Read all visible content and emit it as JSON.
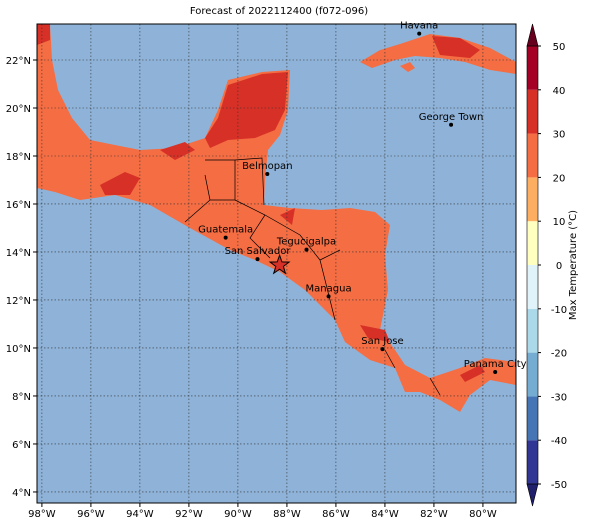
{
  "title": "Forecast of 2022112400 (f072-096)",
  "map": {
    "xlim": [
      -98.2,
      -78.65
    ],
    "ylim": [
      3.54,
      23.5
    ],
    "xticks": [
      {
        "value": -98,
        "label": "98°W"
      },
      {
        "value": -96,
        "label": "96°W"
      },
      {
        "value": -94,
        "label": "94°W"
      },
      {
        "value": -92,
        "label": "92°W"
      },
      {
        "value": -90,
        "label": "90°W"
      },
      {
        "value": -88,
        "label": "88°W"
      },
      {
        "value": -86,
        "label": "86°W"
      },
      {
        "value": -84,
        "label": "84°W"
      },
      {
        "value": -82,
        "label": "82°W"
      },
      {
        "value": -80,
        "label": "80°W"
      }
    ],
    "yticks": [
      {
        "value": 4,
        "label": "4°N"
      },
      {
        "value": 6,
        "label": "6°N"
      },
      {
        "value": 8,
        "label": "8°N"
      },
      {
        "value": 10,
        "label": "10°N"
      },
      {
        "value": 12,
        "label": "12°N"
      },
      {
        "value": 14,
        "label": "14°N"
      },
      {
        "value": 16,
        "label": "16°N"
      },
      {
        "value": 18,
        "label": "18°N"
      },
      {
        "value": 20,
        "label": "20°N"
      },
      {
        "value": 22,
        "label": "22°N"
      }
    ]
  },
  "cities": [
    {
      "name": "Havana",
      "lon": -82.6,
      "lat": 23.1
    },
    {
      "name": "George Town",
      "lon": -81.3,
      "lat": 19.3
    },
    {
      "name": "Belmopan",
      "lon": -88.8,
      "lat": 17.25
    },
    {
      "name": "Guatemala",
      "lon": -90.5,
      "lat": 14.6
    },
    {
      "name": "Tegucigalpa",
      "lon": -87.2,
      "lat": 14.1
    },
    {
      "name": "San Salvador",
      "lon": -89.2,
      "lat": 13.7
    },
    {
      "name": "Managua",
      "lon": -86.3,
      "lat": 12.15
    },
    {
      "name": "San Jose",
      "lon": -84.1,
      "lat": 9.95
    },
    {
      "name": "Panama City",
      "lon": -79.5,
      "lat": 9.0
    }
  ],
  "star": {
    "lon": -88.3,
    "lat": 13.45
  },
  "colorbar": {
    "label": "Max Temperature (°C)",
    "ticks": [
      -50,
      -40,
      -30,
      -20,
      -10,
      0,
      10,
      20,
      30,
      40,
      50
    ],
    "colors": [
      "#313695",
      "#4575b4",
      "#74add1",
      "#abd9e9",
      "#e0f3f8",
      "#ffffbf",
      "#fdae61",
      "#f46d43",
      "#d73027",
      "#a50026"
    ],
    "under": "#1f1f6b",
    "over": "#67001f"
  }
}
